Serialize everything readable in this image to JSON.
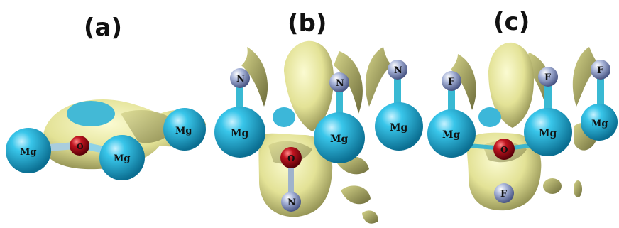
{
  "panels": [
    {
      "label": "(a)",
      "atoms": {
        "mg_left": "Mg",
        "mg_right": "Mg",
        "mg_far": "Mg",
        "o_center": "O"
      }
    },
    {
      "label": "(b)",
      "atoms": {
        "n_top_left": "N",
        "n_top_mid": "N",
        "n_top_right": "N",
        "mg_left": "Mg",
        "mg_mid": "Mg",
        "mg_right": "Mg",
        "o_center": "O",
        "n_bottom": "N"
      }
    },
    {
      "label": "(c)",
      "atoms": {
        "f_top_left": "F",
        "f_top_mid": "F",
        "f_top_right": "F",
        "mg_left": "Mg",
        "mg_mid": "Mg",
        "mg_right": "Mg",
        "o_center": "O",
        "f_bottom": "F"
      }
    }
  ],
  "colors": {
    "isosurface": "#e6e69a",
    "isosurface_shade": "#8d8c52",
    "mg": "#22b6dd",
    "o": "#b0101c",
    "n": "#9ba8cf",
    "f": "#9ba8cf",
    "bond": "#3fb7cc"
  }
}
